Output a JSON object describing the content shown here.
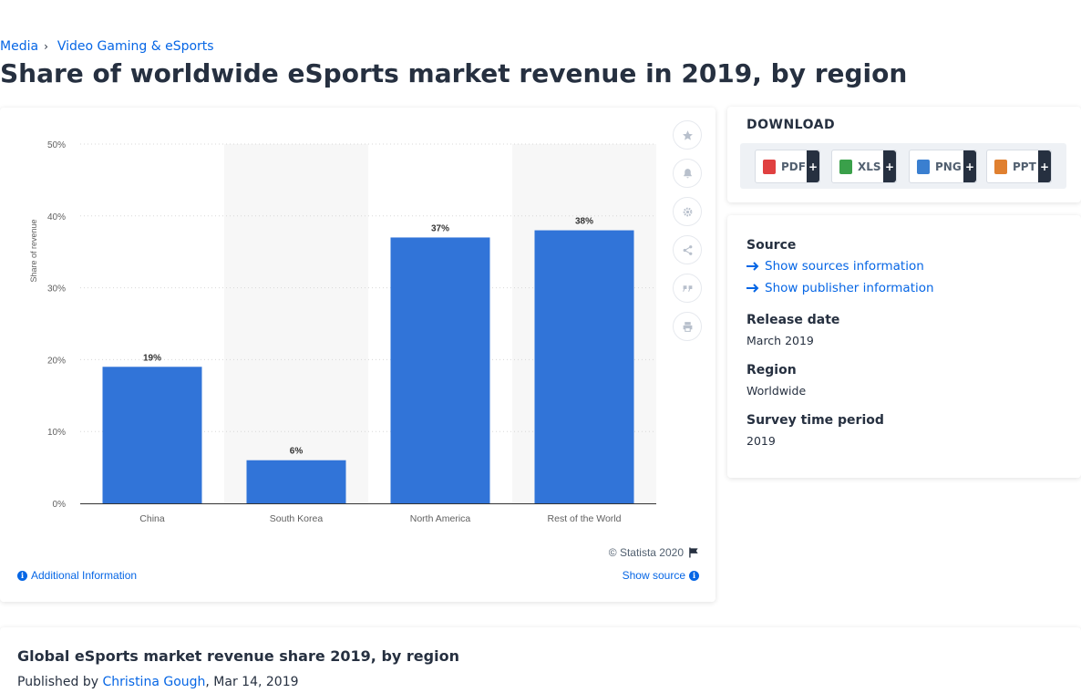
{
  "breadcrumb": {
    "items": [
      "Media",
      "Video Gaming & eSports"
    ]
  },
  "page_title": "Share of worldwide eSports market revenue in 2019, by region",
  "chart_data": {
    "type": "bar",
    "categories": [
      "China",
      "South Korea",
      "North America",
      "Rest of the World"
    ],
    "values": [
      19,
      6,
      37,
      38
    ],
    "data_labels": [
      "19%",
      "6%",
      "37%",
      "38%"
    ],
    "ylabel": "Share of revenue",
    "xlabel": "",
    "ylim": [
      0,
      50
    ],
    "yticks": [
      "0%",
      "10%",
      "20%",
      "30%",
      "40%",
      "50%"
    ],
    "grid": true,
    "bar_color": "#3174d8"
  },
  "chart_footer": {
    "copyright": "© Statista 2020",
    "additional_info": "Additional Information",
    "show_source": "Show source"
  },
  "tools": [
    "star-icon",
    "bell-icon",
    "gear-icon",
    "share-icon",
    "quote-icon",
    "print-icon"
  ],
  "download": {
    "title": "DOWNLOAD",
    "buttons": [
      {
        "label": "PDF",
        "plus": "+",
        "color": "#e04040"
      },
      {
        "label": "XLS",
        "plus": "+",
        "color": "#3aa04a"
      },
      {
        "label": "PNG",
        "plus": "+",
        "color": "#3a7fd0"
      },
      {
        "label": "PPT",
        "plus": "+",
        "color": "#e08030"
      }
    ]
  },
  "info": {
    "source_label": "Source",
    "show_sources": "Show sources information",
    "show_publisher": "Show publisher information",
    "release_label": "Release date",
    "release_value": "March 2019",
    "region_label": "Region",
    "region_value": "Worldwide",
    "period_label": "Survey time period",
    "period_value": "2019"
  },
  "bottom": {
    "title": "Global eSports market revenue share 2019, by region",
    "published_prefix": "Published by",
    "author": "Christina Gough",
    "date_suffix": ", Mar 14, 2019"
  },
  "colors": {
    "accent": "#0666e5",
    "bar": "#3174d8",
    "text": "#263040"
  }
}
